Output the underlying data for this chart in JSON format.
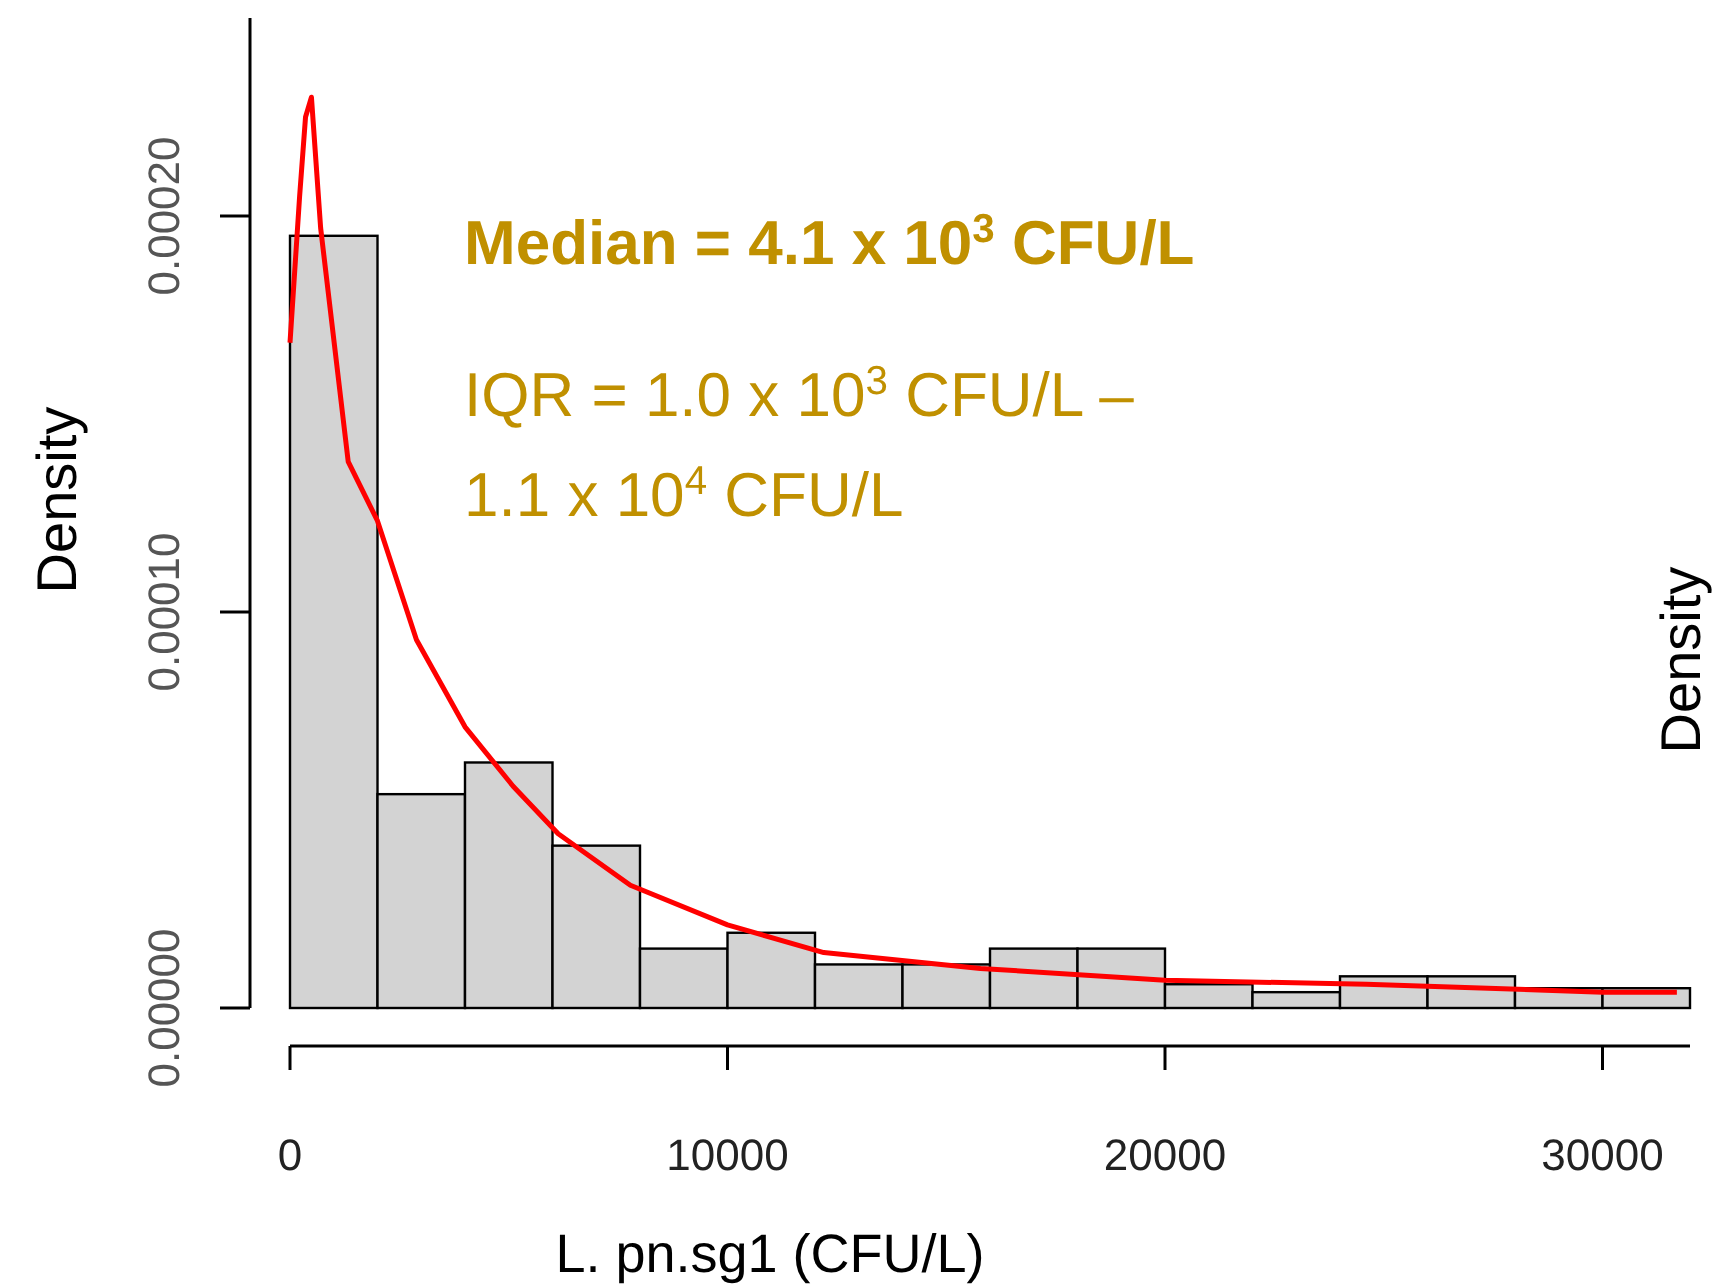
{
  "chart_data": {
    "type": "histogram",
    "xlabel": "L. pn.sg1 (CFU/L)",
    "ylabel": "Density",
    "bins": [
      0,
      2000,
      4000,
      6000,
      8000,
      10000,
      12000,
      14000,
      16000,
      18000,
      20000,
      22000,
      24000,
      26000,
      28000,
      30000,
      32000
    ],
    "values": [
      0.000195,
      5.4e-05,
      6.2e-05,
      4.1e-05,
      1.5e-05,
      1.9e-05,
      1.1e-05,
      1.1e-05,
      1.5e-05,
      1.5e-05,
      6e-06,
      4e-06,
      8e-06,
      8e-06,
      5e-06,
      5e-06
    ],
    "color": "#d3d3d3",
    "series": [
      {
        "type": "line",
        "color": "#ff0000",
        "x": [
          0,
          220,
          355,
          490,
          700,
          1330,
          2000,
          2890,
          4000,
          5100,
          6130,
          7780,
          10000,
          12200,
          15780,
          20000,
          24600,
          30000,
          31700
        ],
        "values": [
          0.000168,
          0.000205,
          0.000225,
          0.00023,
          0.000197,
          0.000138,
          0.000123,
          9.3e-05,
          7.1e-05,
          5.6e-05,
          4.4e-05,
          3.1e-05,
          2.1e-05,
          1.4e-05,
          1e-05,
          7e-06,
          6e-06,
          4e-06,
          4e-06
        ]
      }
    ],
    "xlim": [
      0,
      32000
    ],
    "xticks": [
      0,
      10000,
      20000,
      30000
    ],
    "ylim": [
      0,
      0.00025
    ],
    "yticks": [
      {
        "value": 0,
        "label": "0.00000"
      },
      {
        "value": 0.0001,
        "label": "0.00010"
      },
      {
        "value": 0.0002,
        "label": "0.00020"
      }
    ],
    "line_style": "solid",
    "marker": "none",
    "annotations": [
      "Median = 4.1 x 10$^{3}$ CFU/L",
      "IQR = 1.0 x 10$^{3}$ CFU/L –",
      "1.1 x 10$^{4}$ CFU/L",
      "Density"
    ]
  }
}
